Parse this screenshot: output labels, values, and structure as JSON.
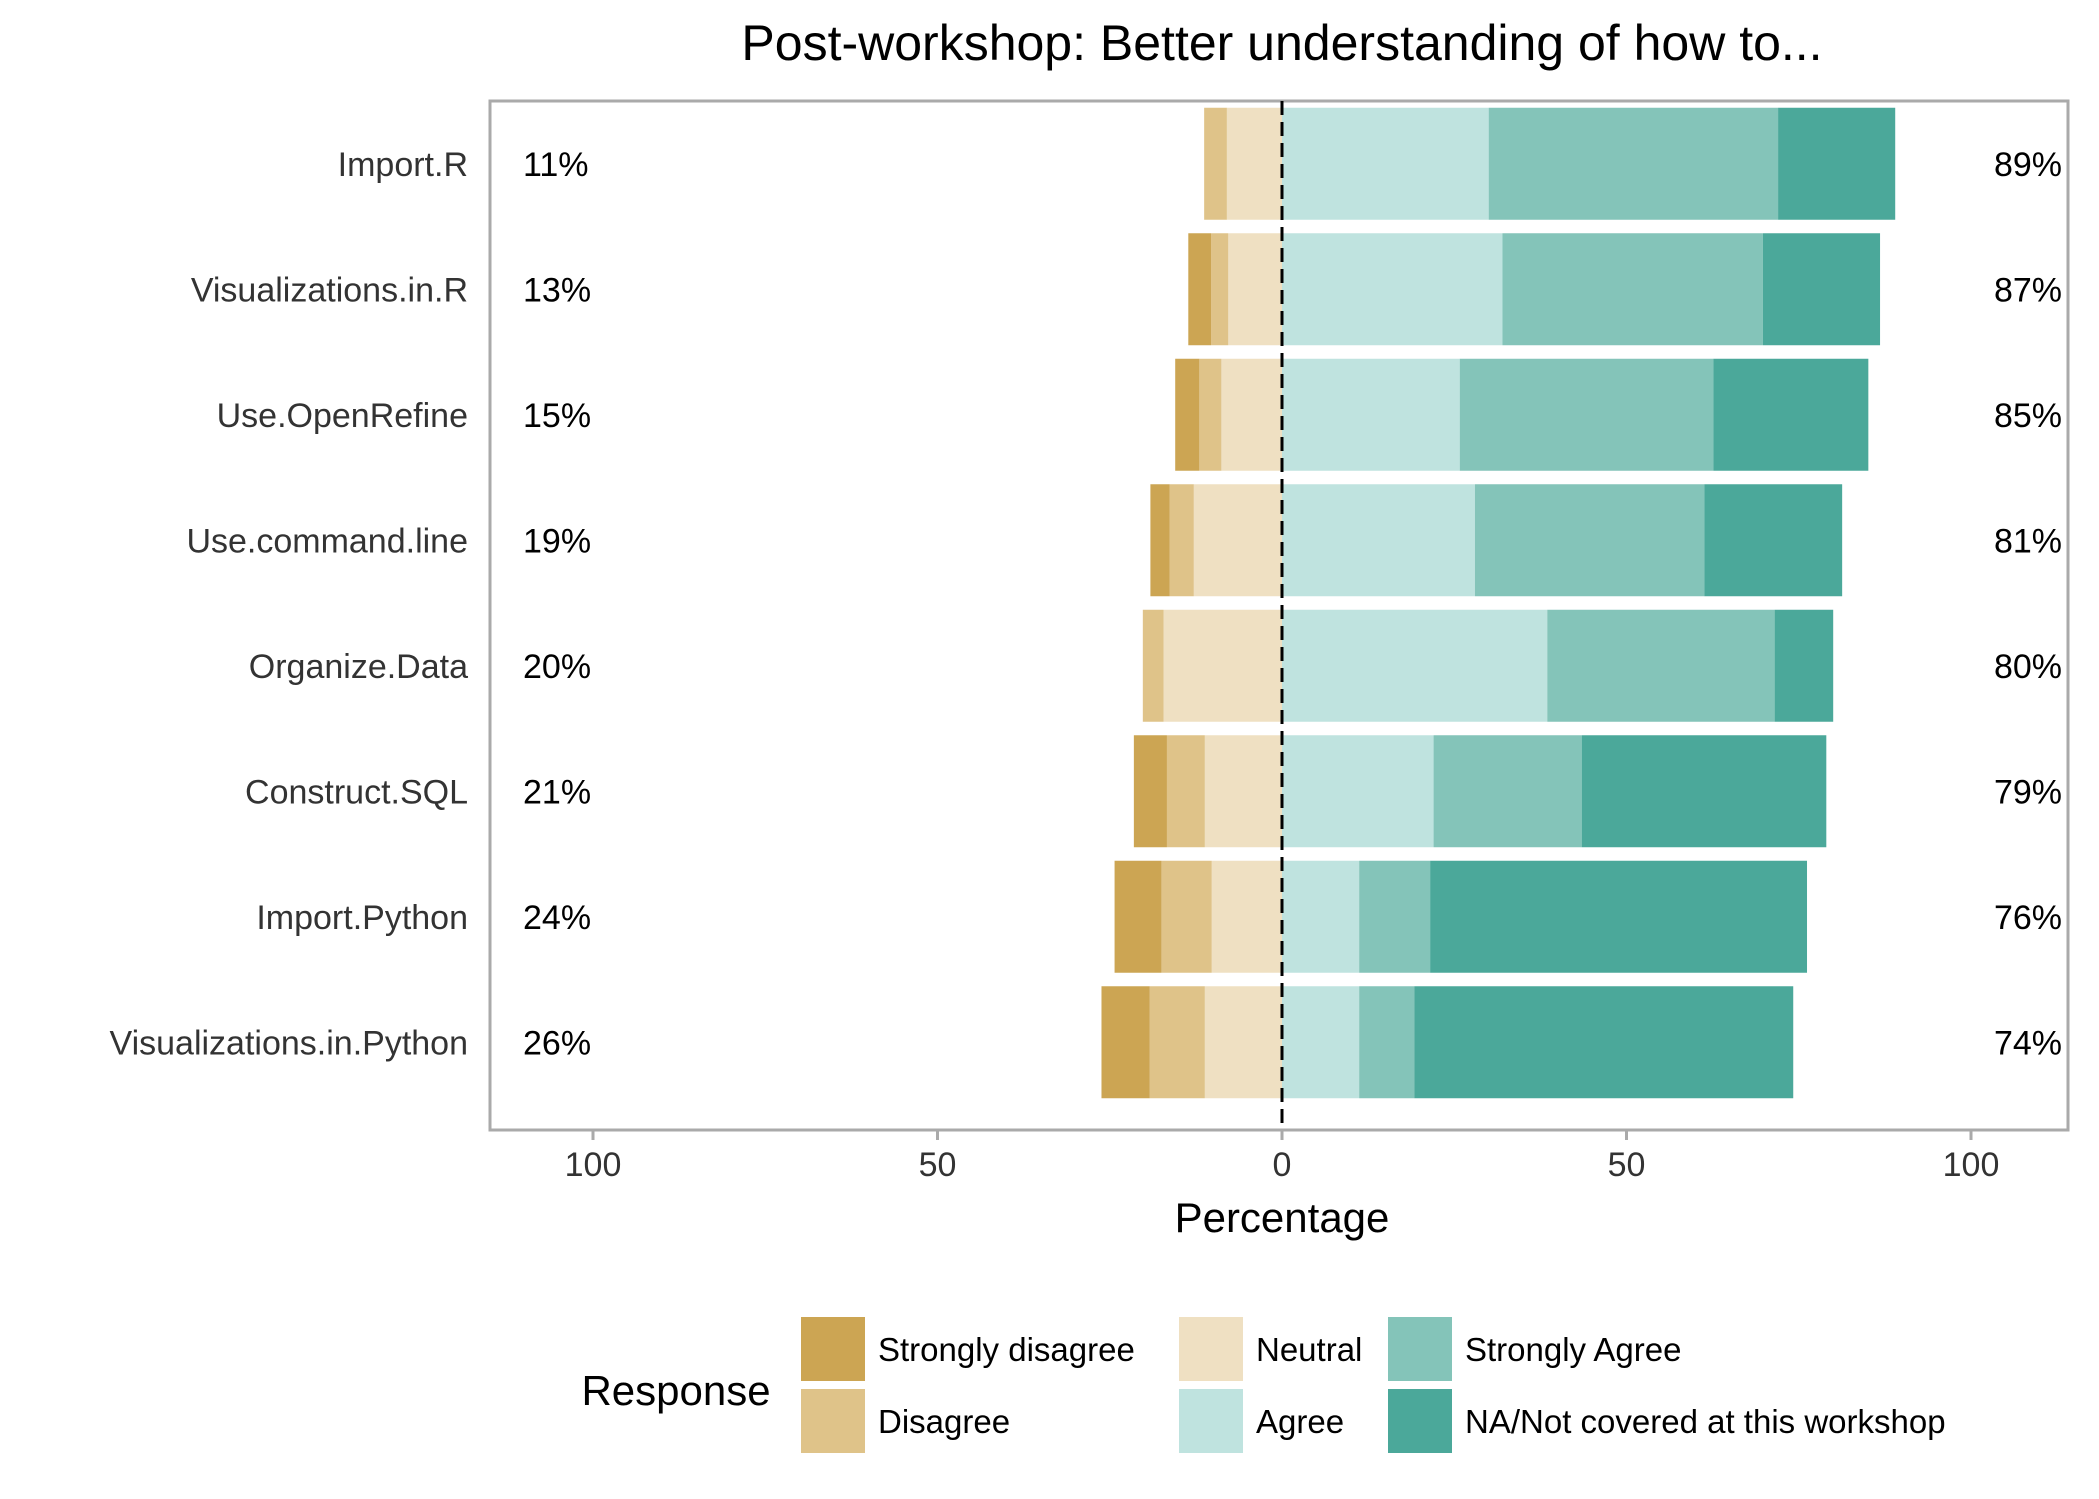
{
  "chart_data": {
    "type": "bar",
    "orientation": "horizontal",
    "stacked": "diverging",
    "title": "Post-workshop: Better understanding of how to...",
    "xlabel": "Percentage",
    "ylabel": "",
    "xlim": [
      -100,
      100
    ],
    "x_ticks": [
      {
        "value": -100,
        "label": "100"
      },
      {
        "value": -50,
        "label": "50"
      },
      {
        "value": 0,
        "label": "0"
      },
      {
        "value": 50,
        "label": "50"
      },
      {
        "value": 100,
        "label": "100"
      }
    ],
    "grid": false,
    "legend_title": "Response",
    "legend_position": "bottom",
    "categories": [
      "Import.R",
      "Visualizations.in.R",
      "Use.OpenRefine",
      "Use.command.line",
      "Organize.Data",
      "Construct.SQL",
      "Import.Python",
      "Visualizations.in.Python"
    ],
    "left_labels": [
      "11%",
      "13%",
      "15%",
      "19%",
      "20%",
      "21%",
      "24%",
      "26%"
    ],
    "right_labels": [
      "89%",
      "87%",
      "85%",
      "81%",
      "80%",
      "79%",
      "76%",
      "74%"
    ],
    "series": [
      {
        "name": "Strongly disagree",
        "color": "#CCA553",
        "side": "negative",
        "values": [
          0,
          3.3,
          3.5,
          2.8,
          0,
          4.8,
          6.8,
          7
        ]
      },
      {
        "name": "Disagree",
        "color": "#DFC389",
        "side": "negative",
        "values": [
          3.3,
          2.5,
          3.2,
          3.5,
          3,
          5.5,
          7.3,
          8
        ]
      },
      {
        "name": "Neutral",
        "color": "#EFE0C2",
        "side": "negative",
        "values": [
          8,
          7.8,
          8.8,
          12.8,
          17.2,
          11.2,
          10.2,
          11.2
        ]
      },
      {
        "name": "Agree",
        "color": "#BFE3DF",
        "side": "positive",
        "values": [
          30,
          32,
          25.8,
          28,
          38.5,
          22,
          11.2,
          11.2
        ]
      },
      {
        "name": "Strongly Agree",
        "color": "#84C4B9",
        "side": "positive",
        "values": [
          42,
          37.8,
          36.8,
          33.3,
          33,
          21.5,
          10.3,
          8
        ]
      },
      {
        "name": "NA/Not covered at this workshop",
        "color": "#4BA89A",
        "side": "positive",
        "values": [
          17,
          17,
          22.5,
          20,
          8.5,
          35.5,
          54.7,
          55
        ]
      }
    ]
  }
}
